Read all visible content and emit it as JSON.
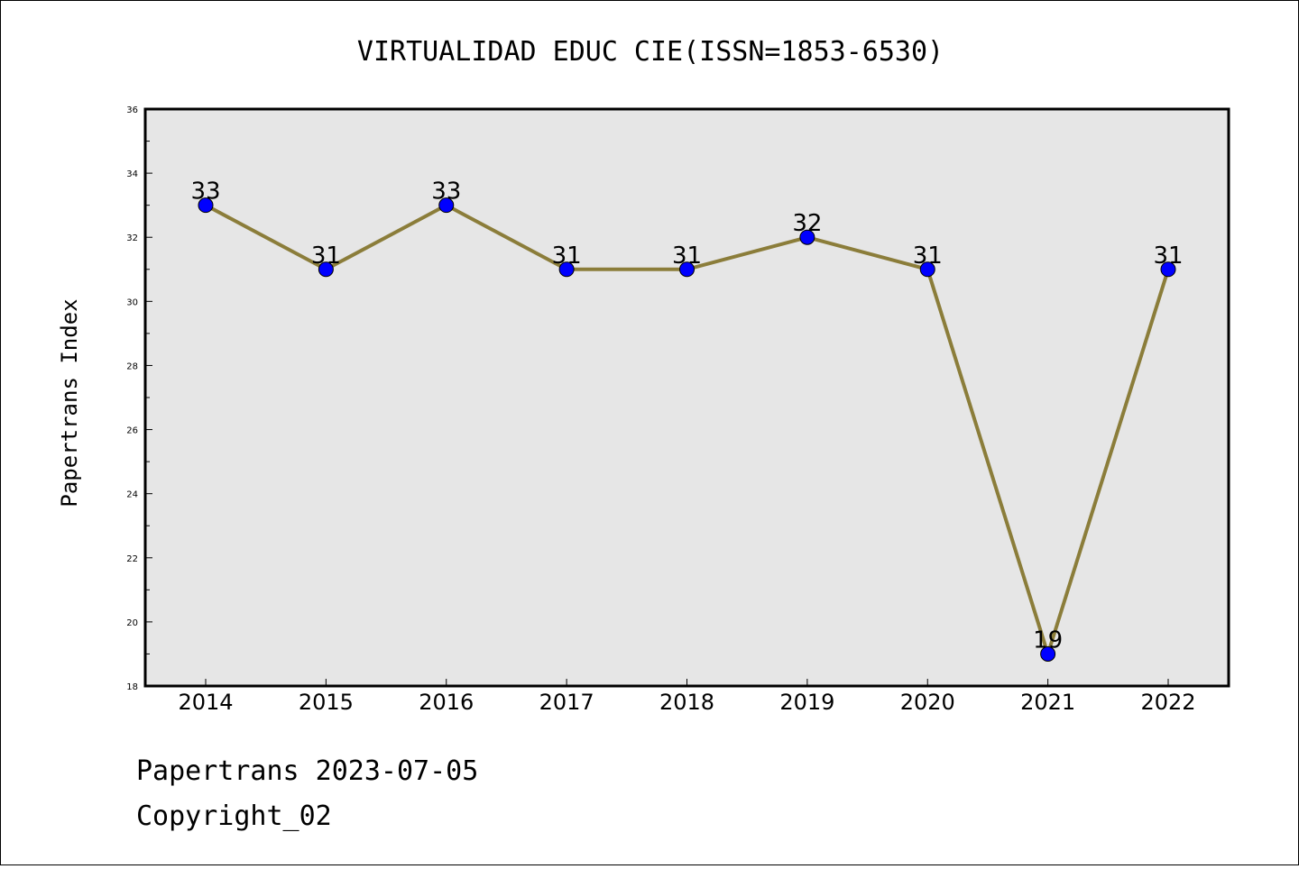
{
  "chart_data": {
    "type": "line",
    "title": "VIRTUALIDAD EDUC CIE(ISSN=1853-6530)",
    "xlabel": "",
    "ylabel": "Papertrans Index",
    "categories": [
      "2014",
      "2015",
      "2016",
      "2017",
      "2018",
      "2019",
      "2020",
      "2021",
      "2022"
    ],
    "series": [
      {
        "values": [
          33,
          31,
          33,
          31,
          31,
          32,
          31,
          19,
          31
        ]
      }
    ],
    "ylim": [
      18,
      36
    ],
    "yticks": [
      18,
      20,
      22,
      24,
      26,
      28,
      30,
      32,
      34,
      36
    ],
    "grid": false,
    "colors": {
      "line": "#8b7d3a",
      "marker": "#0000ff",
      "plot_background": "#e6e6e6"
    }
  },
  "footer": {
    "line1": "Papertrans 2023-07-05",
    "line2": "Copyright_02"
  }
}
